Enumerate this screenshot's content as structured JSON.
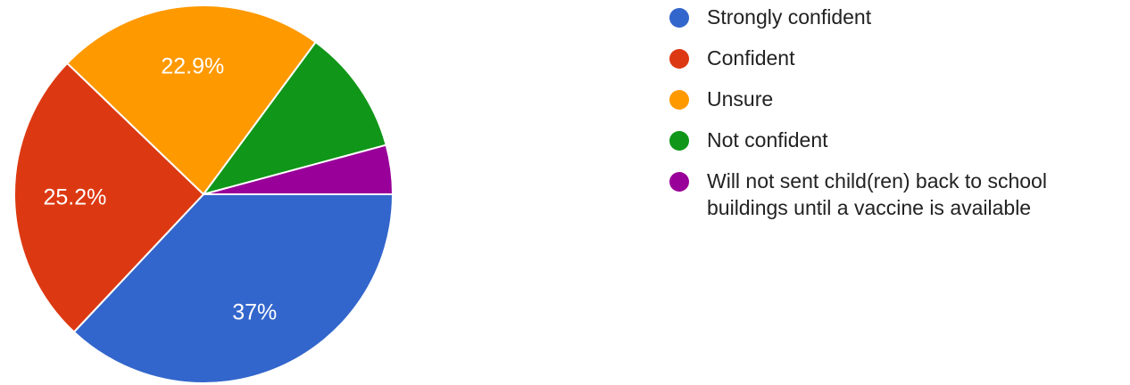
{
  "chart_data": {
    "type": "pie",
    "series": [
      {
        "name": "",
        "values": [
          37,
          25.2,
          22.9,
          10.7,
          4.2
        ]
      }
    ],
    "labels": [
      "Strongly confident",
      "Confident",
      "Unsure",
      "Not confident",
      "Will not sent child(ren) back to school buildings until a vaccine is available"
    ],
    "display_labels": [
      "37%",
      "25.2%",
      "22.9%",
      "",
      ""
    ],
    "colors": [
      "#3366cc",
      "#dc3912",
      "#ff9900",
      "#109618",
      "#990099"
    ],
    "title": "",
    "legend_position": "right"
  },
  "legend": {
    "items": [
      {
        "label": "Strongly confident",
        "color": "#3366cc"
      },
      {
        "label": "Confident",
        "color": "#dc3912"
      },
      {
        "label": "Unsure",
        "color": "#ff9900"
      },
      {
        "label": "Not confident",
        "color": "#109618"
      },
      {
        "label": "Will not sent child(ren) back to school buildings until a vaccine is available",
        "color": "#990099"
      }
    ]
  }
}
